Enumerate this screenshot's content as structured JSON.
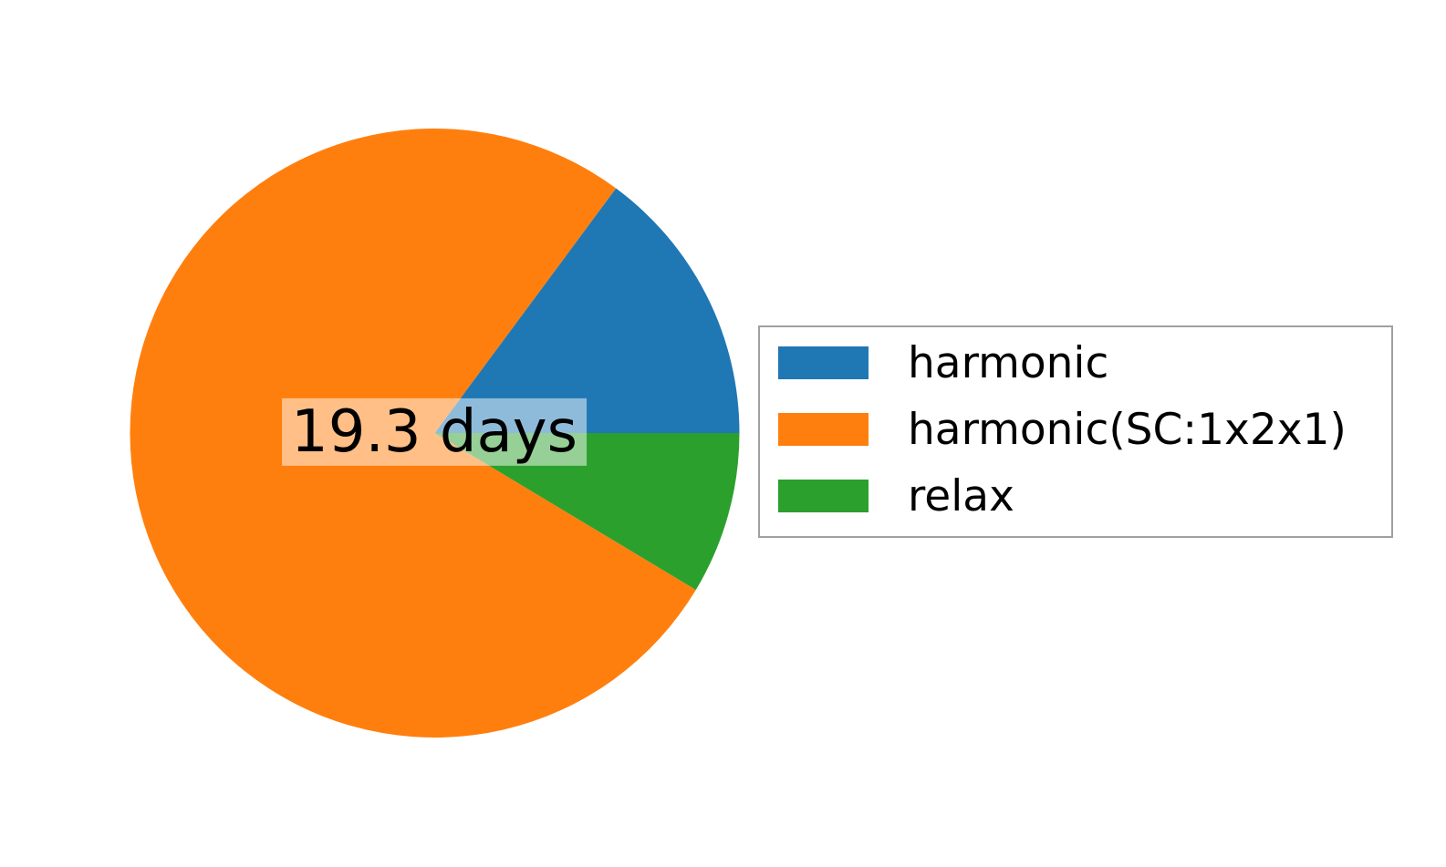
{
  "figure": {
    "background_color": "#ffffff",
    "text_color": "#000000",
    "center_label_box_fill": "rgba(255,255,255,0.5)"
  },
  "chart_data": {
    "type": "pie",
    "title": "",
    "center_label": "19.3 days",
    "start_angle_deg": 0,
    "direction": "counterclockwise",
    "legend_position": "center right",
    "slices": [
      {
        "label": "harmonic",
        "color": "#1f77b4",
        "fraction": 0.149,
        "percent": 14.9,
        "start_deg": 0,
        "end_deg": 53.5
      },
      {
        "label": "harmonic(SC:1x2x1)",
        "color": "#ff7f0e",
        "fraction": 0.765,
        "percent": 76.5,
        "start_deg": 53.5,
        "end_deg": 329.0
      },
      {
        "label": "relax",
        "color": "#2ca02c",
        "fraction": 0.086,
        "percent": 8.6,
        "start_deg": 329.0,
        "end_deg": 360
      }
    ]
  },
  "legend": {
    "border_color": "#a0a0a0",
    "items": [
      {
        "label": "harmonic",
        "color": "#1f77b4"
      },
      {
        "label": "harmonic(SC:1x2x1)",
        "color": "#ff7f0e"
      },
      {
        "label": "relax",
        "color": "#2ca02c"
      }
    ]
  }
}
